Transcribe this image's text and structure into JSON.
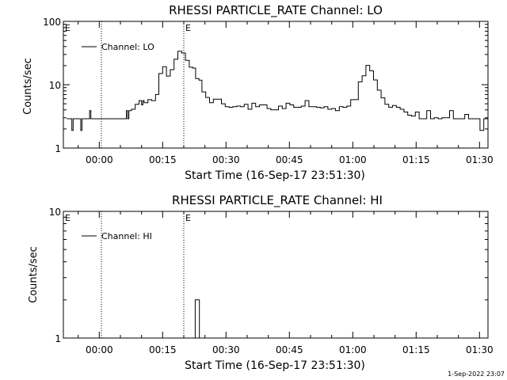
{
  "chart_data": [
    {
      "type": "line",
      "title": "RHESSI PARTICLE_RATE Channel: LO",
      "xlabel": "Start Time (16-Sep-17 23:51:30)",
      "ylabel": "Counts/sec",
      "yscale": "log",
      "ylim": [
        1,
        100
      ],
      "yticks": [
        {
          "v": 1,
          "label": "1"
        },
        {
          "v": 10,
          "label": "10"
        },
        {
          "v": 100,
          "label": "100"
        }
      ],
      "xlim": [
        -8.5,
        92
      ],
      "xticks": [
        {
          "v": 0,
          "label": "00:00"
        },
        {
          "v": 15,
          "label": "00:15"
        },
        {
          "v": 30,
          "label": "00:30"
        },
        {
          "v": 45,
          "label": "00:45"
        },
        {
          "v": 60,
          "label": "01:00"
        },
        {
          "v": 75,
          "label": "01:15"
        },
        {
          "v": 90,
          "label": "01:30"
        }
      ],
      "markers": [
        {
          "x": 0.5,
          "label": ""
        },
        {
          "x": 20.0,
          "label": "E"
        },
        {
          "x": 100.0,
          "label": ""
        }
      ],
      "marker_corner_label": "E",
      "legend": {
        "position": "top-left",
        "entries": [
          "Channel: LO"
        ]
      },
      "series": [
        {
          "name": "Channel: LO",
          "x": [
            -7.7,
            -6.8,
            -6.5,
            -6.2,
            -5.3,
            -4.7,
            -4.4,
            -4.1,
            -3.2,
            -2.6,
            -2.3,
            -2.0,
            -1.1,
            -0.5,
            -0.2,
            0.1,
            0.5,
            1.2,
            1.8,
            2.6,
            3.4,
            4.3,
            5.2,
            6.1,
            6.4,
            6.7,
            7.0,
            7.6,
            8.5,
            9.4,
            10.0,
            10.3,
            10.6,
            11.5,
            12.4,
            13.3,
            14.1,
            15.0,
            15.9,
            16.8,
            17.7,
            18.6,
            19.5,
            20.4,
            21.3,
            22.1,
            22.8,
            23.6,
            24.3,
            25.2,
            26.1,
            27.0,
            28.0,
            28.9,
            29.8,
            30.7,
            31.6,
            32.5,
            33.4,
            34.3,
            35.2,
            36.1,
            37.0,
            37.9,
            38.8,
            39.7,
            40.6,
            41.5,
            42.4,
            43.3,
            44.2,
            45.1,
            46.0,
            46.9,
            47.8,
            48.7,
            49.6,
            50.5,
            51.4,
            52.3,
            53.2,
            54.1,
            55.0,
            55.9,
            56.8,
            57.7,
            58.6,
            59.5,
            60.4,
            61.3,
            62.2,
            63.1,
            64.0,
            64.9,
            65.8,
            66.7,
            67.6,
            68.5,
            69.4,
            70.3,
            71.2,
            72.1,
            73.0,
            73.9,
            74.8,
            75.7,
            76.6,
            77.5,
            78.4,
            79.3,
            80.2,
            81.1,
            82.0,
            82.9,
            83.8,
            84.7,
            85.6,
            86.5,
            87.4,
            88.3,
            89.2,
            90.1,
            91.0,
            91.8,
            92.6,
            93.3,
            94.1,
            95.0,
            96.1
          ],
          "y": [
            2.9,
            2.9,
            1.9,
            2.9,
            2.9,
            2.9,
            1.9,
            2.9,
            2.9,
            2.9,
            3.9,
            2.9,
            2.9,
            2.9,
            2.9,
            2.9,
            2.9,
            2.9,
            2.9,
            2.9,
            2.9,
            2.9,
            2.9,
            2.9,
            3.9,
            2.9,
            3.9,
            4.1,
            4.9,
            5.6,
            4.8,
            5.6,
            5.2,
            5.8,
            5.6,
            7.0,
            15.0,
            19.2,
            13.7,
            17.3,
            25.3,
            33.7,
            31.6,
            24.2,
            18.9,
            18.3,
            12.5,
            11.8,
            7.7,
            6.3,
            5.2,
            5.9,
            5.9,
            5.0,
            4.5,
            4.4,
            4.5,
            4.6,
            4.5,
            4.9,
            4.1,
            5.1,
            4.5,
            4.8,
            4.8,
            4.2,
            4.0,
            4.0,
            4.6,
            4.2,
            5.1,
            4.8,
            4.4,
            4.4,
            4.6,
            5.6,
            4.5,
            4.5,
            4.4,
            4.3,
            4.5,
            4.1,
            4.2,
            3.9,
            4.5,
            4.4,
            4.6,
            5.8,
            5.8,
            11.1,
            13.8,
            20.2,
            16.6,
            11.9,
            8.2,
            6.2,
            4.9,
            4.4,
            4.7,
            4.4,
            4.1,
            3.7,
            3.3,
            3.2,
            3.7,
            2.9,
            2.9,
            3.9,
            2.9,
            3.0,
            2.9,
            3.0,
            3.0,
            3.9,
            2.9,
            2.9,
            2.9,
            3.4,
            2.9,
            2.9,
            2.9,
            1.9,
            2.9,
            2.9,
            2.9,
            2.9,
            2.9,
            2.9,
            2.9
          ]
        }
      ]
    },
    {
      "type": "line",
      "title": "RHESSI PARTICLE_RATE Channel: HI",
      "xlabel": "Start Time (16-Sep-17 23:51:30)",
      "ylabel": "Counts/sec",
      "yscale": "log",
      "ylim": [
        1,
        10
      ],
      "yticks": [
        {
          "v": 1,
          "label": "1"
        },
        {
          "v": 10,
          "label": "10"
        }
      ],
      "xlim": [
        -8.5,
        92
      ],
      "xticks": [
        {
          "v": 0,
          "label": "00:00"
        },
        {
          "v": 15,
          "label": "00:15"
        },
        {
          "v": 30,
          "label": "00:30"
        },
        {
          "v": 45,
          "label": "00:45"
        },
        {
          "v": 60,
          "label": "01:00"
        },
        {
          "v": 75,
          "label": "01:15"
        },
        {
          "v": 90,
          "label": "01:30"
        }
      ],
      "markers": [
        {
          "x": 0.5,
          "label": ""
        },
        {
          "x": 20.0,
          "label": "E"
        },
        {
          "x": 100.0,
          "label": ""
        }
      ],
      "marker_corner_label": "E",
      "legend": {
        "position": "top-left",
        "entries": [
          "Channel: HI"
        ]
      },
      "series": [
        {
          "name": "Channel: HI",
          "x": [
            22.2,
            22.7,
            23.3,
            23.7,
            24.1
          ],
          "y": [
            1.0,
            2.0,
            2.0,
            1.0,
            1.0
          ]
        }
      ]
    }
  ],
  "footer": {
    "stamp": "1-Sep-2022 23:07"
  }
}
